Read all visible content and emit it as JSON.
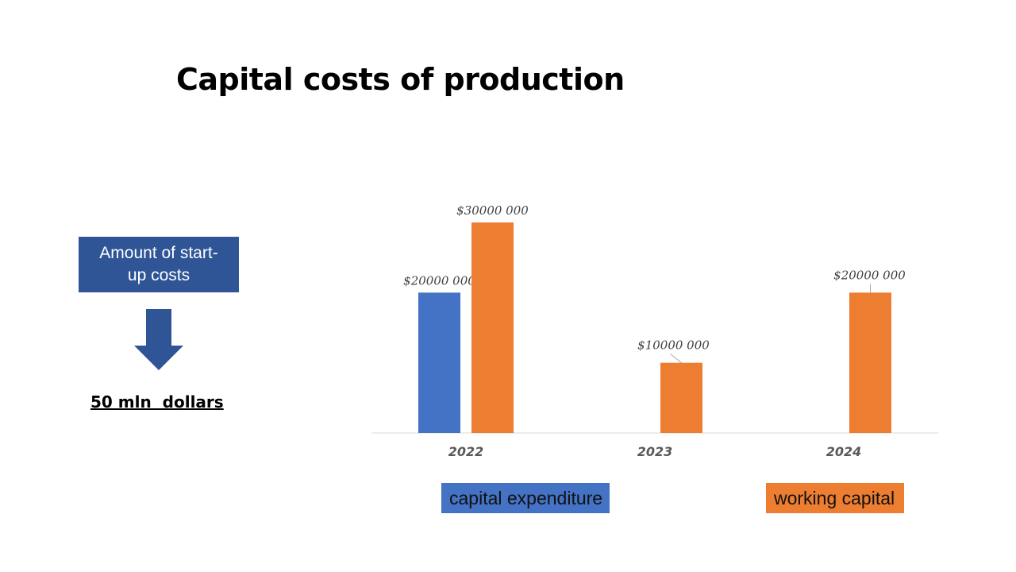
{
  "slide": {
    "title": "Capital costs of production",
    "startup_label": "Amount of start-up costs",
    "total": "50 mln  dollars"
  },
  "colors": {
    "capital_expenditure": "#4472c4",
    "working_capital": "#ed7d31",
    "startup_box": "#2f5597"
  },
  "icons": {
    "arrow": "down-arrow-icon"
  },
  "chart_data": {
    "type": "bar",
    "categories": [
      "2022",
      "2023",
      "2024"
    ],
    "series": [
      {
        "name": "capital expenditure",
        "values": [
          20000000,
          null,
          null
        ],
        "labels": [
          "$20000 000",
          "",
          ""
        ]
      },
      {
        "name": "working capital",
        "values": [
          30000000,
          10000000,
          20000000
        ],
        "labels": [
          "$30000 000",
          "$10000 000",
          "$20000 000"
        ]
      }
    ],
    "ylim": [
      0,
      30000000
    ],
    "grid": false,
    "legend_placement": "bottom"
  }
}
